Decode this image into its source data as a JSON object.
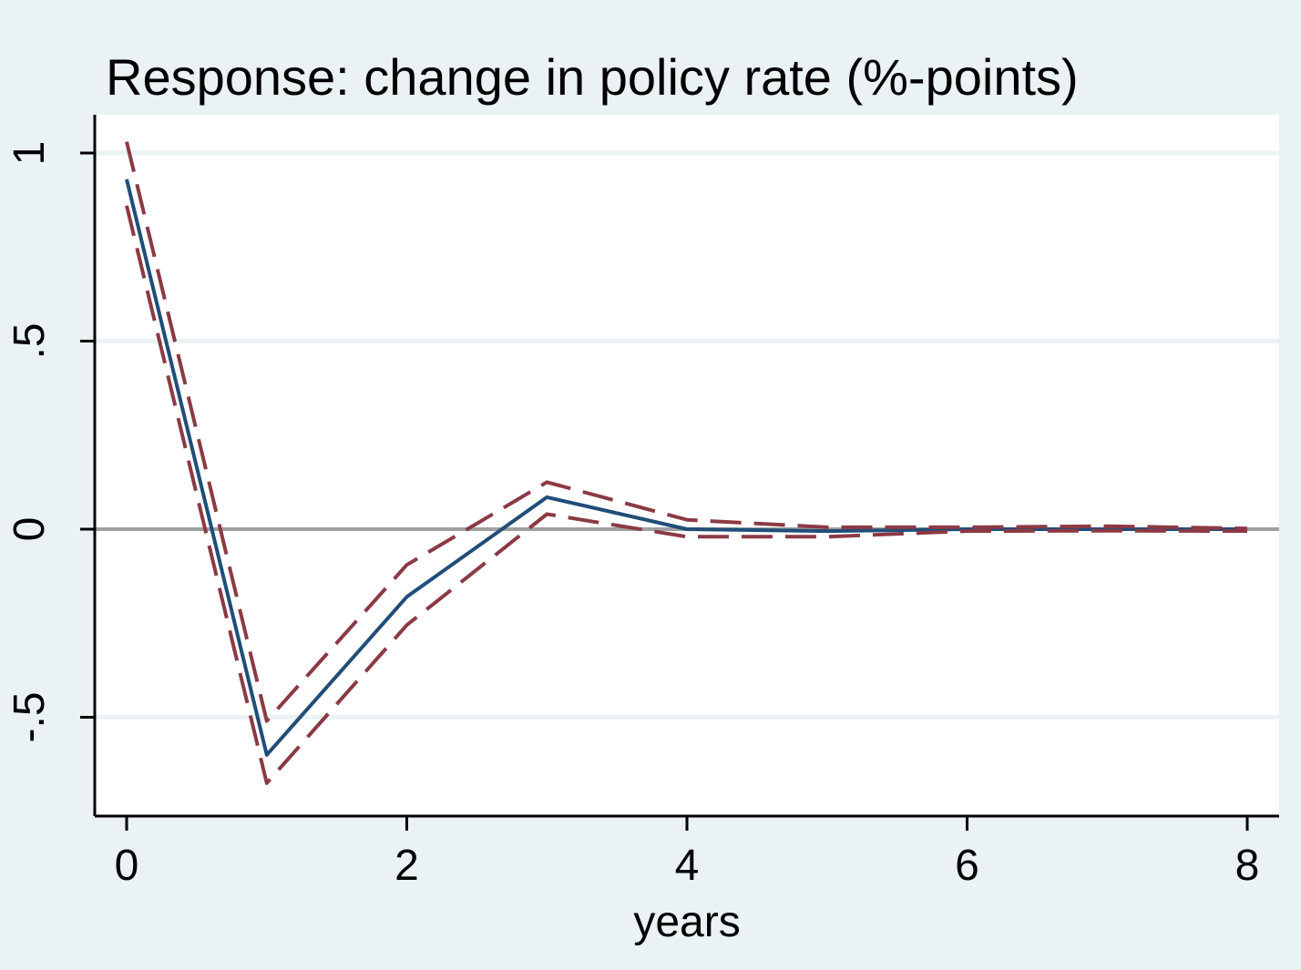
{
  "chart_data": {
    "type": "line",
    "title": "Response: change in policy rate (%-points)",
    "xlabel": "years",
    "ylabel": "",
    "xlim": [
      0,
      8
    ],
    "ylim": [
      -0.75,
      1.1
    ],
    "x_ticks": [
      0,
      2,
      4,
      6,
      8
    ],
    "x_tick_labels": [
      "0",
      "2",
      "4",
      "6",
      "8"
    ],
    "y_ticks": [
      -0.5,
      0,
      0.5,
      1
    ],
    "y_tick_labels": [
      "-.5",
      "0",
      ".5",
      "1"
    ],
    "grid": true,
    "zero_line": true,
    "x": [
      0,
      1,
      2,
      3,
      4,
      5,
      6,
      7,
      8
    ],
    "series": [
      {
        "role": "estimate",
        "style": "solid",
        "color": "#1f4e79",
        "values": [
          0.93,
          -0.6,
          -0.18,
          0.085,
          0.0,
          -0.005,
          0.0,
          0.0,
          0.0
        ]
      },
      {
        "role": "upper-band",
        "style": "dashed",
        "color": "#8b3a44",
        "values": [
          1.03,
          -0.51,
          -0.095,
          0.125,
          0.025,
          0.005,
          0.005,
          0.008,
          0.002
        ]
      },
      {
        "role": "lower-band",
        "style": "dashed",
        "color": "#8b3a44",
        "values": [
          0.86,
          -0.675,
          -0.255,
          0.04,
          -0.02,
          -0.02,
          -0.005,
          -0.004,
          -0.005
        ]
      }
    ],
    "colors": {
      "background": "#eaf2f3",
      "plot_background": "#ffffff",
      "gridline": "#eaf2f3",
      "zero_line": "#a0a0a0",
      "axis": "#000000"
    }
  }
}
